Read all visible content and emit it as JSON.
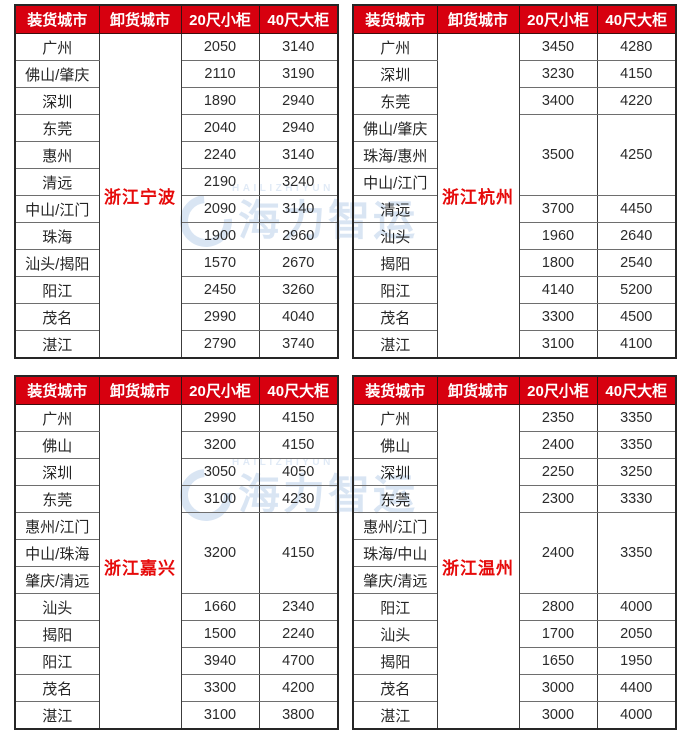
{
  "columns": {
    "loading_city": "装货城市",
    "unloading_city": "卸货城市",
    "container_20ft": "20尺小柜",
    "container_40ft": "40尺大柜"
  },
  "watermark": {
    "latin": "HAILIZHIYUN",
    "cjk": "海力智运",
    "color": "#b5cce9"
  },
  "colors": {
    "header_bg": "#d7000f",
    "header_text": "#ffffff",
    "destination_text": "#e60a0a",
    "cell_text": "#262626"
  },
  "tables": [
    {
      "destination": "浙江宁波",
      "rows": [
        {
          "city": "广州",
          "p20": "2050",
          "p40": "3140"
        },
        {
          "city": "佛山/肇庆",
          "p20": "2110",
          "p40": "3190"
        },
        {
          "city": "深圳",
          "p20": "1890",
          "p40": "2940"
        },
        {
          "city": "东莞",
          "p20": "2040",
          "p40": "2940"
        },
        {
          "city": "惠州",
          "p20": "2240",
          "p40": "3140"
        },
        {
          "city": "清远",
          "p20": "2190",
          "p40": "3240"
        },
        {
          "city": "中山/江门",
          "p20": "2090",
          "p40": "3140"
        },
        {
          "city": "珠海",
          "p20": "1900",
          "p40": "2960"
        },
        {
          "city": "汕头/揭阳",
          "p20": "1570",
          "p40": "2670"
        },
        {
          "city": "阳江",
          "p20": "2450",
          "p40": "3260"
        },
        {
          "city": "茂名",
          "p20": "2990",
          "p40": "4040"
        },
        {
          "city": "湛江",
          "p20": "2790",
          "p40": "3740"
        }
      ]
    },
    {
      "destination": "浙江杭州",
      "rows": [
        {
          "city": "广州",
          "p20": "3450",
          "p40": "4280"
        },
        {
          "city": "深圳",
          "p20": "3230",
          "p40": "4150"
        },
        {
          "city": "东莞",
          "p20": "3400",
          "p40": "4220"
        },
        {
          "city": "佛山/肇庆",
          "p20": "3500",
          "p40": "4250",
          "rowspan": 3
        },
        {
          "city": "珠海/惠州"
        },
        {
          "city": "中山/江门"
        },
        {
          "city": "清远",
          "p20": "3700",
          "p40": "4450"
        },
        {
          "city": "汕头",
          "p20": "1960",
          "p40": "2640"
        },
        {
          "city": "揭阳",
          "p20": "1800",
          "p40": "2540"
        },
        {
          "city": "阳江",
          "p20": "4140",
          "p40": "5200"
        },
        {
          "city": "茂名",
          "p20": "3300",
          "p40": "4500"
        },
        {
          "city": "湛江",
          "p20": "3100",
          "p40": "4100"
        }
      ]
    },
    {
      "destination": "浙江嘉兴",
      "rows": [
        {
          "city": "广州",
          "p20": "2990",
          "p40": "4150"
        },
        {
          "city": "佛山",
          "p20": "3200",
          "p40": "4150"
        },
        {
          "city": "深圳",
          "p20": "3050",
          "p40": "4050"
        },
        {
          "city": "东莞",
          "p20": "3100",
          "p40": "4230"
        },
        {
          "city": "惠州/江门",
          "p20": "3200",
          "p40": "4150",
          "rowspan": 3
        },
        {
          "city": "中山/珠海"
        },
        {
          "city": "肇庆/清远"
        },
        {
          "city": "汕头",
          "p20": "1660",
          "p40": "2340"
        },
        {
          "city": "揭阳",
          "p20": "1500",
          "p40": "2240"
        },
        {
          "city": "阳江",
          "p20": "3940",
          "p40": "4700"
        },
        {
          "city": "茂名",
          "p20": "3300",
          "p40": "4200"
        },
        {
          "city": "湛江",
          "p20": "3100",
          "p40": "3800"
        }
      ]
    },
    {
      "destination": "浙江温州",
      "rows": [
        {
          "city": "广州",
          "p20": "2350",
          "p40": "3350"
        },
        {
          "city": "佛山",
          "p20": "2400",
          "p40": "3350"
        },
        {
          "city": "深圳",
          "p20": "2250",
          "p40": "3250"
        },
        {
          "city": "东莞",
          "p20": "2300",
          "p40": "3330"
        },
        {
          "city": "惠州/江门",
          "p20": "2400",
          "p40": "3350",
          "rowspan": 3
        },
        {
          "city": "珠海/中山"
        },
        {
          "city": "肇庆/清远"
        },
        {
          "city": "阳江",
          "p20": "2800",
          "p40": "4000"
        },
        {
          "city": "汕头",
          "p20": "1700",
          "p40": "2050"
        },
        {
          "city": "揭阳",
          "p20": "1650",
          "p40": "1950"
        },
        {
          "city": "茂名",
          "p20": "3000",
          "p40": "4400"
        },
        {
          "city": "湛江",
          "p20": "3000",
          "p40": "4000"
        }
      ]
    }
  ]
}
